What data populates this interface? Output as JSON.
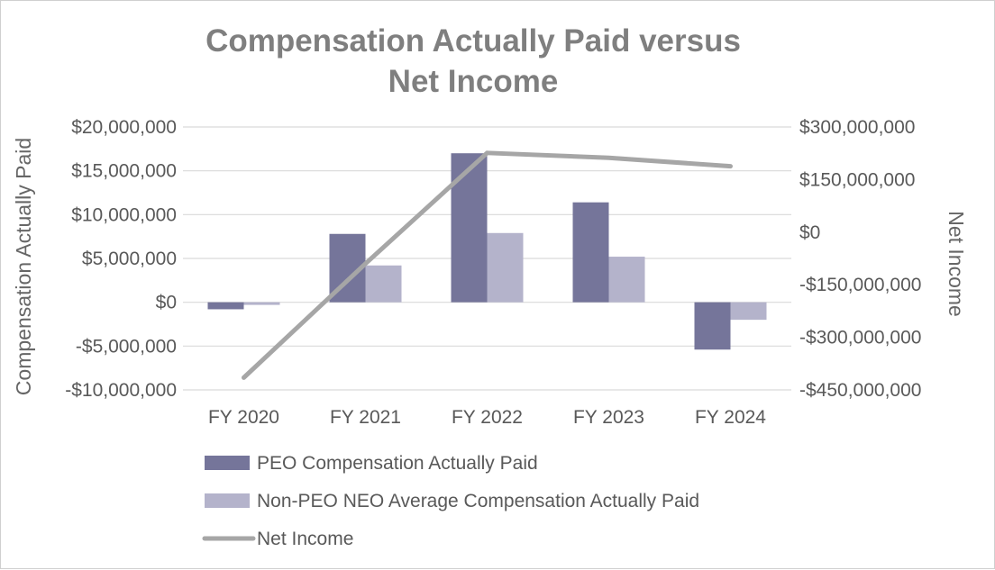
{
  "chart_data": {
    "type": "bar",
    "title_lines": [
      "Compensation Actually Paid versus",
      "Net Income"
    ],
    "categories": [
      "FY 2020",
      "FY 2021",
      "FY 2022",
      "FY 2023",
      "FY 2024"
    ],
    "ylabel": "Compensation Actually Paid",
    "y2label": "Net Income",
    "ylim": [
      -10000000,
      20000000
    ],
    "y2lim": [
      -450000000,
      300000000
    ],
    "yticks": [
      20000000,
      15000000,
      10000000,
      5000000,
      0,
      -5000000,
      -10000000
    ],
    "ytick_labels": [
      "$20,000,000",
      "$15,000,000",
      "$10,000,000",
      "$5,000,000",
      "$0",
      "-$5,000,000",
      "-$10,000,000"
    ],
    "y2ticks": [
      300000000,
      150000000,
      0,
      -150000000,
      -300000000,
      -450000000
    ],
    "y2tick_labels": [
      "$300,000,000",
      "$150,000,000",
      "$0",
      "-$150,000,000",
      "-$300,000,000",
      "-$450,000,000"
    ],
    "grid": true,
    "legend_position": "bottom",
    "series": [
      {
        "name": "PEO Compensation Actually Paid",
        "type": "bar",
        "axis": "left",
        "color": "#75759a",
        "values": [
          -800000,
          7800000,
          17000000,
          11400000,
          -5400000
        ]
      },
      {
        "name": "Non-PEO NEO Average Compensation Actually Paid",
        "type": "bar",
        "axis": "left",
        "color": "#b4b3cb",
        "values": [
          -300000,
          4200000,
          7900000,
          5200000,
          -2000000
        ]
      },
      {
        "name": "Net Income",
        "type": "line",
        "axis": "right",
        "color": "#a6a6a6",
        "values": [
          -415000000,
          -90000000,
          226000000,
          212000000,
          188000000
        ]
      }
    ]
  }
}
